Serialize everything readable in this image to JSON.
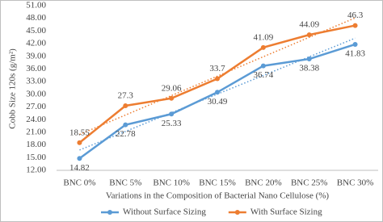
{
  "chart_data": {
    "type": "line",
    "y_label": "Cobb Size 120s (g/m²)",
    "x_label": "Variations in the Composition of Bacterial Nano Cellulose (%)",
    "categories": [
      "BNC 0%",
      "BNC 5%",
      "BNC 10%",
      "BNC 15%",
      "BNC 20%",
      "BNC 25%",
      "BNC 30%"
    ],
    "series": [
      {
        "name": "Without Surface Sizing",
        "color": "#5b9bd5",
        "values": [
          14.82,
          22.78,
          25.33,
          30.49,
          36.74,
          38.38,
          41.83
        ],
        "label_position": "below"
      },
      {
        "name": "With Surface Sizing",
        "color": "#ed7d31",
        "values": [
          18.55,
          27.3,
          29.06,
          33.7,
          41.09,
          44.09,
          46.3
        ],
        "label_position": "above"
      }
    ],
    "ylim": [
      12,
      51
    ],
    "yticks": [
      {
        "value": 12,
        "label": "12.00"
      },
      {
        "value": 15,
        "label": "15.00"
      },
      {
        "value": 18,
        "label": "18.00"
      },
      {
        "value": 21,
        "label": "21.00"
      },
      {
        "value": 24,
        "label": "24.00"
      },
      {
        "value": 27,
        "label": "27.00"
      },
      {
        "value": 30,
        "label": "30.00"
      },
      {
        "value": 33,
        "label": "33.00"
      },
      {
        "value": 36,
        "label": "36.00"
      },
      {
        "value": 39,
        "label": "39.00"
      },
      {
        "value": 42,
        "label": "42.00"
      },
      {
        "value": 45,
        "label": "45.00"
      },
      {
        "value": 48,
        "label": "48.00"
      },
      {
        "value": 51,
        "label": "51.00"
      }
    ],
    "grid": false,
    "trendline": true,
    "legend": "bottom"
  }
}
